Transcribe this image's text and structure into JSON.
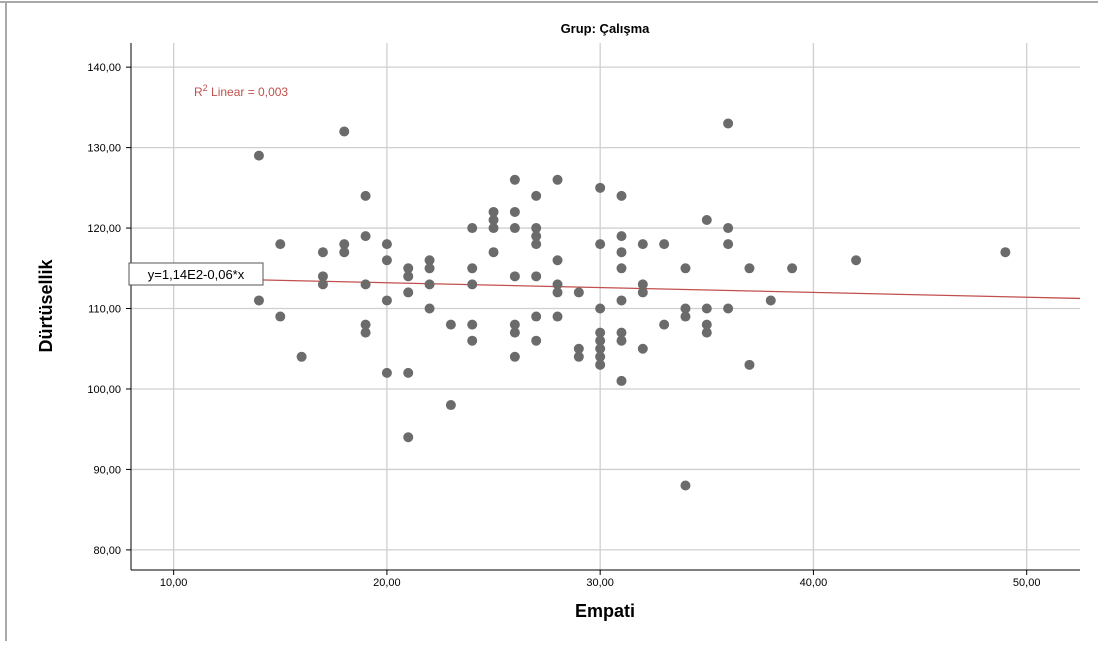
{
  "chart_data": {
    "type": "scatter",
    "title": "Grup: Çalışma",
    "xlabel": "Empati",
    "ylabel": "Dürtüsellik",
    "xlim": [
      8,
      52.5
    ],
    "ylim": [
      77.5,
      143
    ],
    "x_ticks": [
      10,
      20,
      30,
      40,
      50
    ],
    "y_ticks": [
      80,
      90,
      100,
      110,
      120,
      130,
      140
    ],
    "x_tick_labels": [
      "10,00",
      "20,00",
      "30,00",
      "40,00",
      "50,00"
    ],
    "y_tick_labels": [
      "80,00",
      "90,00",
      "100,00",
      "110,00",
      "120,00",
      "130,00",
      "140,00"
    ],
    "grid": true,
    "point_color": "#6b6b6b",
    "fit_line": {
      "type": "linear",
      "intercept": 114.4,
      "slope": -0.06,
      "equation_label": "y=1,14E2-0,06*x",
      "r2_prefix": "R",
      "r2_sup": "2",
      "r2_text": " Linear = 0,003",
      "color": "#c0504d"
    },
    "points": [
      [
        14,
        129
      ],
      [
        14,
        111
      ],
      [
        15,
        118
      ],
      [
        15,
        109
      ],
      [
        16,
        104
      ],
      [
        17,
        117
      ],
      [
        17,
        114
      ],
      [
        17,
        113
      ],
      [
        18,
        132
      ],
      [
        18,
        118
      ],
      [
        18,
        117
      ],
      [
        19,
        124
      ],
      [
        19,
        119
      ],
      [
        19,
        113
      ],
      [
        19,
        108
      ],
      [
        19,
        107
      ],
      [
        20,
        118
      ],
      [
        20,
        116
      ],
      [
        20,
        111
      ],
      [
        20,
        102
      ],
      [
        21,
        115
      ],
      [
        21,
        114
      ],
      [
        21,
        112
      ],
      [
        21,
        102
      ],
      [
        21,
        94
      ],
      [
        22,
        116
      ],
      [
        22,
        115
      ],
      [
        22,
        113
      ],
      [
        22,
        110
      ],
      [
        23,
        108
      ],
      [
        23,
        98
      ],
      [
        24,
        120
      ],
      [
        24,
        115
      ],
      [
        24,
        113
      ],
      [
        24,
        108
      ],
      [
        24,
        106
      ],
      [
        25,
        122
      ],
      [
        25,
        121
      ],
      [
        25,
        120
      ],
      [
        25,
        117
      ],
      [
        26,
        126
      ],
      [
        26,
        122
      ],
      [
        26,
        120
      ],
      [
        26,
        114
      ],
      [
        26,
        108
      ],
      [
        26,
        107
      ],
      [
        26,
        104
      ],
      [
        27,
        124
      ],
      [
        27,
        120
      ],
      [
        27,
        119
      ],
      [
        27,
        118
      ],
      [
        27,
        114
      ],
      [
        27,
        109
      ],
      [
        27,
        106
      ],
      [
        28,
        126
      ],
      [
        28,
        116
      ],
      [
        28,
        113
      ],
      [
        28,
        112
      ],
      [
        28,
        109
      ],
      [
        29,
        112
      ],
      [
        29,
        105
      ],
      [
        29,
        104
      ],
      [
        30,
        125
      ],
      [
        30,
        118
      ],
      [
        30,
        110
      ],
      [
        30,
        107
      ],
      [
        30,
        106
      ],
      [
        30,
        105
      ],
      [
        30,
        104
      ],
      [
        30,
        103
      ],
      [
        31,
        124
      ],
      [
        31,
        119
      ],
      [
        31,
        117
      ],
      [
        31,
        115
      ],
      [
        31,
        111
      ],
      [
        31,
        107
      ],
      [
        31,
        106
      ],
      [
        31,
        101
      ],
      [
        32,
        118
      ],
      [
        32,
        113
      ],
      [
        32,
        112
      ],
      [
        32,
        105
      ],
      [
        33,
        118
      ],
      [
        33,
        108
      ],
      [
        34,
        115
      ],
      [
        34,
        110
      ],
      [
        34,
        109
      ],
      [
        34,
        88
      ],
      [
        35,
        121
      ],
      [
        35,
        110
      ],
      [
        35,
        108
      ],
      [
        35,
        107
      ],
      [
        36,
        133
      ],
      [
        36,
        120
      ],
      [
        36,
        118
      ],
      [
        36,
        110
      ],
      [
        37,
        115
      ],
      [
        37,
        103
      ],
      [
        38,
        111
      ],
      [
        39,
        115
      ],
      [
        42,
        116
      ],
      [
        49,
        117
      ]
    ]
  }
}
